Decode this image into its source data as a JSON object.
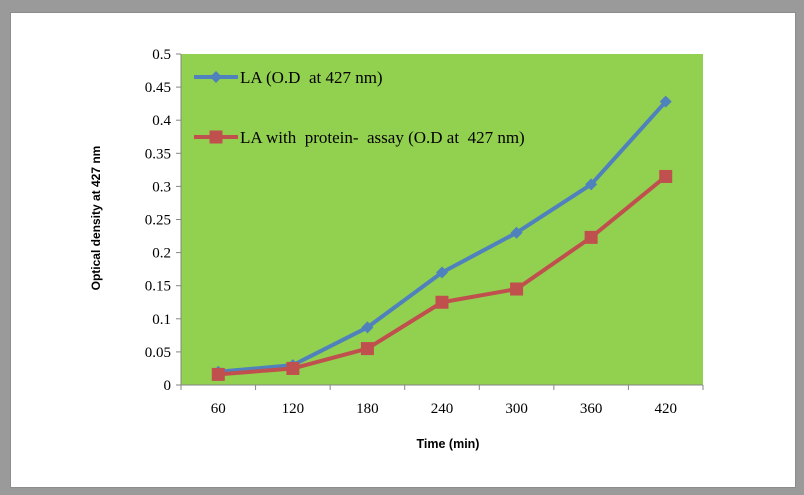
{
  "chart_data": {
    "type": "line",
    "title": "",
    "xlabel": "Time (min)",
    "ylabel": "Optical density at 427 nm",
    "categories": [
      "60",
      "120",
      "180",
      "240",
      "300",
      "360",
      "420"
    ],
    "ylim": [
      0,
      0.5
    ],
    "yticks": [
      "0",
      "0.05",
      "0.1",
      "0.15",
      "0.2",
      "0.25",
      "0.3",
      "0.35",
      "0.4",
      "0.45",
      "0.5"
    ],
    "grid": false,
    "legend_position": "top-left inside plot",
    "plot_background": "#92d050",
    "series": [
      {
        "name": "LA (O.D  at 427 nm)",
        "color": "#4f81bd",
        "marker": "diamond",
        "values": [
          0.02,
          0.03,
          0.087,
          0.17,
          0.23,
          0.303,
          0.428
        ]
      },
      {
        "name": "LA with  protein-  assay (O.D at  427 nm)",
        "color": "#c0504d",
        "marker": "square",
        "values": [
          0.016,
          0.025,
          0.055,
          0.125,
          0.145,
          0.223,
          0.315
        ]
      }
    ]
  }
}
